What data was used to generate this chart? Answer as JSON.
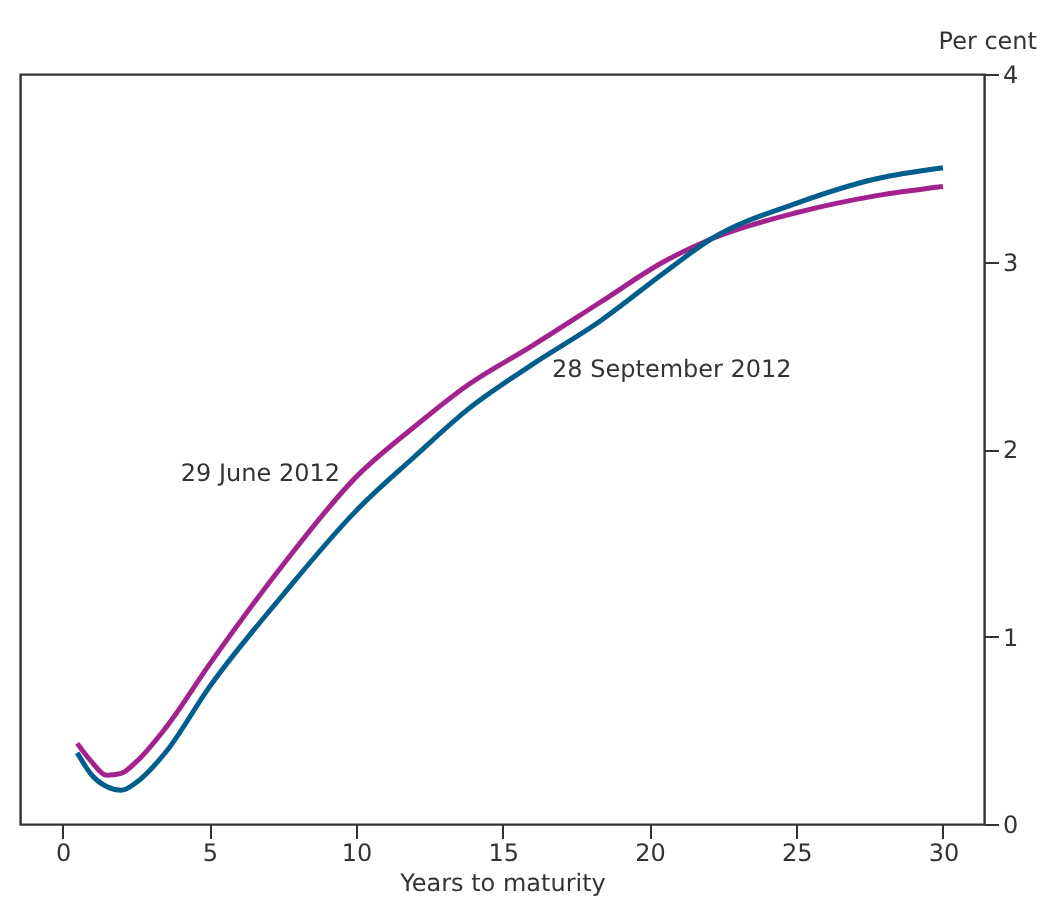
{
  "chart_data": {
    "type": "line",
    "xlabel": "Years to maturity",
    "ylabel": "Per cent",
    "x": [
      0.5,
      1,
      1.5,
      2,
      2.5,
      3.5,
      5,
      7.5,
      10,
      12,
      13.8,
      16,
      18.3,
      20.5,
      22.1,
      25,
      27.7,
      30
    ],
    "series": [
      {
        "name": "29 June 2012",
        "color": "#a3238e",
        "values": [
          0.43,
          0.33,
          0.26,
          0.27,
          0.33,
          0.51,
          0.85,
          1.38,
          1.85,
          2.12,
          2.34,
          2.55,
          2.78,
          3.0,
          3.12,
          3.26,
          3.35,
          3.4
        ]
      },
      {
        "name": "28 September 2012",
        "color": "#005e8d",
        "values": [
          0.38,
          0.26,
          0.2,
          0.18,
          0.22,
          0.38,
          0.73,
          1.22,
          1.67,
          1.96,
          2.21,
          2.45,
          2.68,
          2.94,
          3.12,
          3.31,
          3.44,
          3.5
        ]
      }
    ],
    "xlim": [
      -1.45,
      31.4
    ],
    "ylim": [
      0,
      4
    ],
    "xticks": [
      0,
      5,
      10,
      15,
      20,
      25,
      30
    ],
    "yticks": [
      0,
      1,
      2,
      3,
      4
    ],
    "grid": false,
    "marker": "none",
    "line_style": "solid"
  }
}
